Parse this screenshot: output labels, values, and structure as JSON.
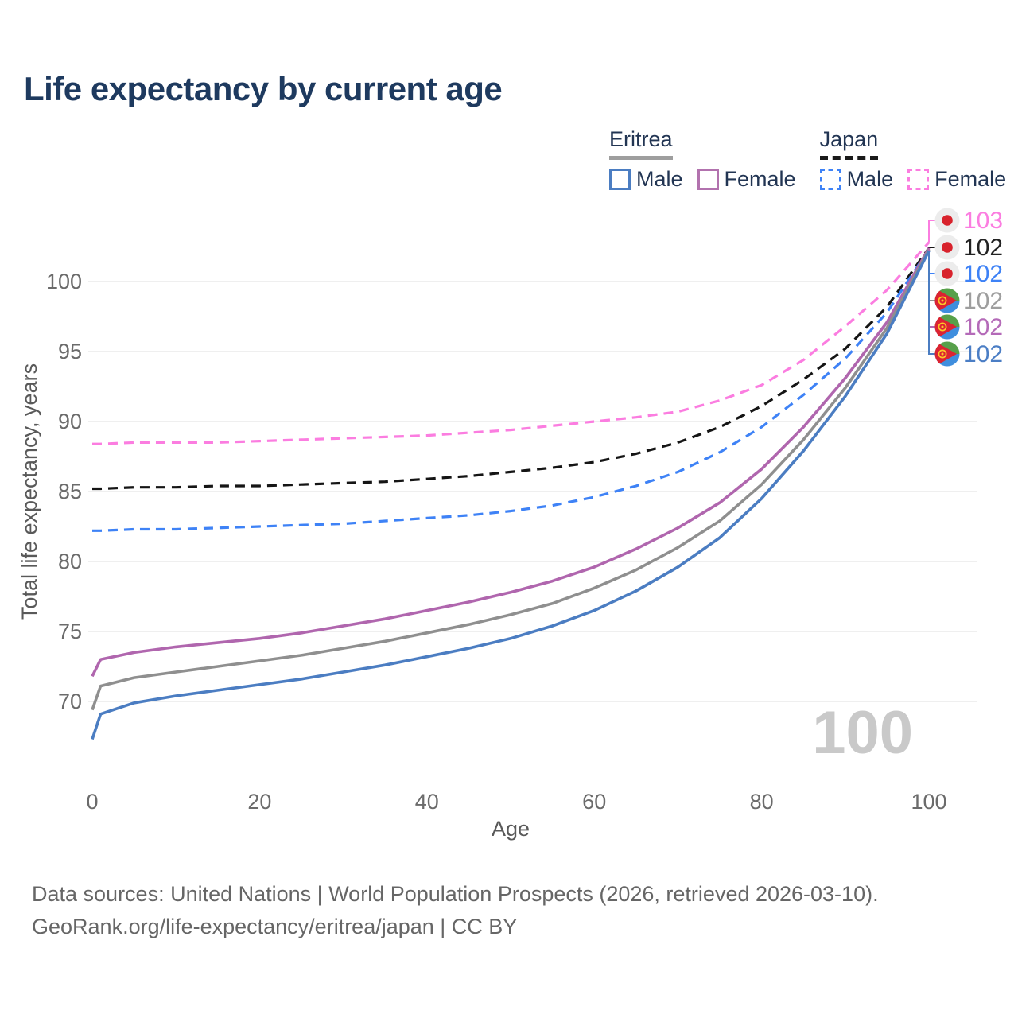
{
  "header": {
    "title": "Life expectancy by current age"
  },
  "legend": {
    "groups": [
      {
        "country": "Eritrea",
        "line_style": "solid",
        "underline_color": "#9e9e9e",
        "items": [
          {
            "label": "Male",
            "color": "#4b7dc2",
            "dash": false
          },
          {
            "label": "Female",
            "color": "#b272ae",
            "dash": false
          }
        ]
      },
      {
        "country": "Japan",
        "line_style": "dashed",
        "underline_color": "#1a1a1a",
        "items": [
          {
            "label": "Male",
            "color": "#3e82f6",
            "dash": true
          },
          {
            "label": "Female",
            "color": "#fb7de0",
            "dash": true
          }
        ]
      }
    ]
  },
  "chart_data": {
    "type": "line",
    "title": "Life expectancy by current age",
    "xlabel": "Age",
    "ylabel": "Total life expectancy, years",
    "xticks": [
      0,
      20,
      40,
      60,
      80,
      100
    ],
    "yticks": [
      70,
      75,
      80,
      85,
      90,
      95,
      100
    ],
    "xlim": [
      0,
      100
    ],
    "ylim": [
      64.5,
      104.5
    ],
    "grid": "horizontal-only",
    "hover_age": "100",
    "x_ages": [
      0,
      1,
      5,
      10,
      15,
      20,
      25,
      30,
      35,
      40,
      45,
      50,
      55,
      60,
      65,
      70,
      75,
      80,
      85,
      90,
      95,
      100
    ],
    "series": [
      {
        "id": "japan-female",
        "name": "Japan Female",
        "country": "Japan",
        "sex": "Female",
        "line_style": "dashed",
        "color": "#fb7de0",
        "values": [
          88.4,
          88.4,
          88.5,
          88.5,
          88.5,
          88.6,
          88.7,
          88.8,
          88.9,
          89.0,
          89.2,
          89.4,
          89.7,
          90.0,
          90.3,
          90.7,
          91.5,
          92.6,
          94.4,
          96.8,
          99.4,
          102.8
        ]
      },
      {
        "id": "japan-both",
        "name": "Japan Both sexes",
        "country": "Japan",
        "sex": "Both sexes",
        "line_style": "dashed",
        "color": "#151515",
        "values": [
          85.2,
          85.2,
          85.3,
          85.3,
          85.4,
          85.4,
          85.5,
          85.6,
          85.7,
          85.9,
          86.1,
          86.4,
          86.7,
          87.1,
          87.7,
          88.5,
          89.6,
          91.1,
          93.0,
          95.2,
          98.2,
          102.4
        ]
      },
      {
        "id": "japan-male",
        "name": "Japan Male",
        "country": "Japan",
        "sex": "Male",
        "line_style": "dashed",
        "color": "#3e82f6",
        "values": [
          82.2,
          82.2,
          82.3,
          82.3,
          82.4,
          82.5,
          82.6,
          82.7,
          82.9,
          83.1,
          83.3,
          83.6,
          84.0,
          84.6,
          85.4,
          86.4,
          87.8,
          89.6,
          91.9,
          94.5,
          97.8,
          102.3
        ]
      },
      {
        "id": "eritrea-female",
        "name": "Eritrea Female",
        "country": "Eritrea",
        "sex": "Female",
        "line_style": "solid",
        "color": "#b066ae",
        "values": [
          71.8,
          73.0,
          73.5,
          73.9,
          74.2,
          74.5,
          74.9,
          75.4,
          75.9,
          76.5,
          77.1,
          77.8,
          78.6,
          79.6,
          80.9,
          82.4,
          84.2,
          86.6,
          89.6,
          93.1,
          97.1,
          102.4
        ]
      },
      {
        "id": "eritrea-both",
        "name": "Eritrea Both sexes",
        "country": "Eritrea",
        "sex": "Both sexes",
        "line_style": "solid",
        "color": "#8f8f8f",
        "values": [
          69.4,
          71.1,
          71.7,
          72.1,
          72.5,
          72.9,
          73.3,
          73.8,
          74.3,
          74.9,
          75.5,
          76.2,
          77.0,
          78.1,
          79.4,
          81.0,
          82.9,
          85.5,
          88.7,
          92.4,
          96.7,
          102.3
        ]
      },
      {
        "id": "eritrea-male",
        "name": "Eritrea Male",
        "country": "Eritrea",
        "sex": "Male",
        "line_style": "solid",
        "color": "#4b7dc2",
        "values": [
          67.3,
          69.1,
          69.9,
          70.4,
          70.8,
          71.2,
          71.6,
          72.1,
          72.6,
          73.2,
          73.8,
          74.5,
          75.4,
          76.5,
          77.9,
          79.6,
          81.7,
          84.5,
          87.9,
          91.8,
          96.3,
          102.2
        ]
      }
    ]
  },
  "end_labels": [
    {
      "text": "103",
      "flag": "japan",
      "color": "#fb7de0",
      "series_id": "japan-female"
    },
    {
      "text": "102",
      "flag": "japan",
      "color": "#222222",
      "series_id": "japan-both"
    },
    {
      "text": "102",
      "flag": "japan",
      "color": "#3e82f6",
      "series_id": "japan-male"
    },
    {
      "text": "102",
      "flag": "eritrea",
      "color": "#9e9e9e",
      "series_id": "eritrea-both"
    },
    {
      "text": "102",
      "flag": "eritrea",
      "color": "#b46ab8",
      "series_id": "eritrea-female"
    },
    {
      "text": "102",
      "flag": "eritrea",
      "color": "#4b7ec5",
      "series_id": "eritrea-male"
    }
  ],
  "footer": {
    "line1": "Data sources: United Nations | World Population Prospects (2026, retrieved 2026-03-10).",
    "line2": "GeoRank.org/life-expectancy/eritrea/japan | CC BY"
  }
}
